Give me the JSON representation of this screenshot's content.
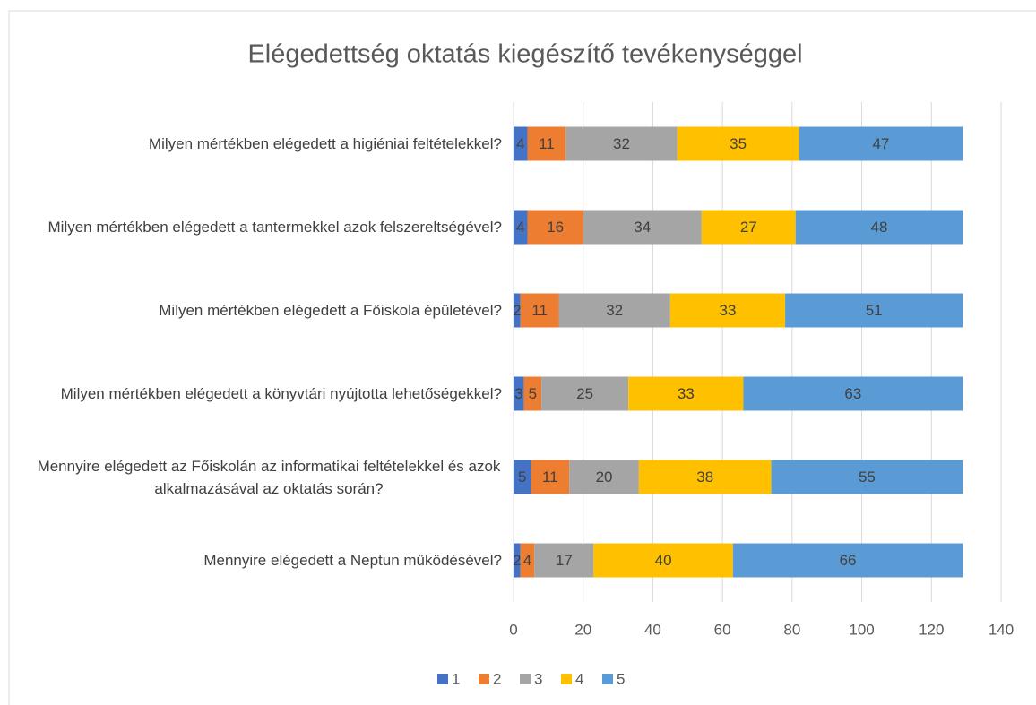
{
  "chart_data": {
    "type": "stacked_bar_horizontal",
    "title": "Elégedettség oktatás kiegészítő tevékenységgel",
    "categories": [
      "Milyen mértékben elégedett a higiéniai feltételekkel?",
      "Milyen mértékben elégedett a tantermekkel azok felszereltségével?",
      "Milyen mértékben elégedett a Főiskola épületével?",
      "Milyen mértékben elégedett a könyvtári nyújtotta lehetőségekkel?",
      "Mennyire elégedett az Főiskolán az informatikai feltételekkel és azok alkalmazásával az oktatás során?",
      "Mennyire elégedett a Neptun működésével?"
    ],
    "series": [
      {
        "name": "1",
        "color": "#4472c4",
        "values": [
          4,
          4,
          2,
          3,
          5,
          2
        ]
      },
      {
        "name": "2",
        "color": "#ed7d31",
        "values": [
          11,
          16,
          11,
          5,
          11,
          4
        ]
      },
      {
        "name": "3",
        "color": "#a5a5a5",
        "values": [
          32,
          34,
          32,
          25,
          20,
          17
        ]
      },
      {
        "name": "4",
        "color": "#ffc000",
        "values": [
          35,
          27,
          33,
          33,
          38,
          40
        ]
      },
      {
        "name": "5",
        "color": "#5b9bd5",
        "values": [
          47,
          48,
          51,
          63,
          55,
          66
        ]
      }
    ],
    "xlim": [
      0,
      140
    ],
    "xticks": [
      0,
      20,
      40,
      60,
      80,
      100,
      120,
      140
    ],
    "grid": true,
    "legend": "bottom"
  }
}
